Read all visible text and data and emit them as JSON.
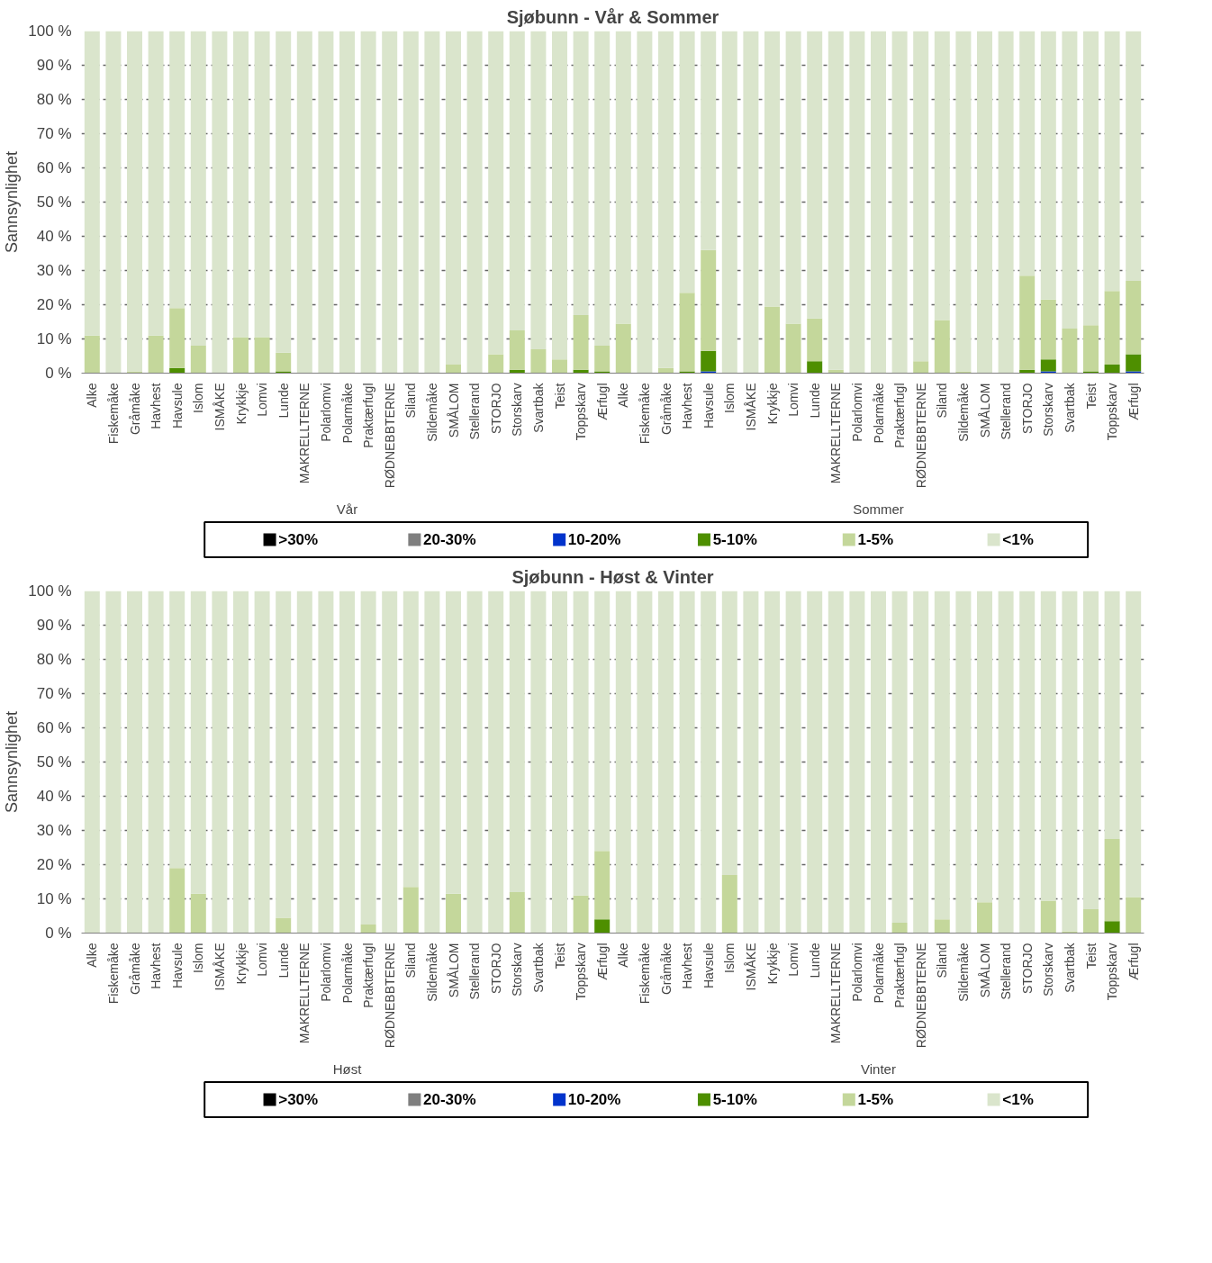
{
  "chart_data": [
    {
      "type": "bar",
      "title": "Sjøbunn - Vår & Sommer",
      "ylabel": "Sannsynlighet",
      "stacked": true,
      "grid": "y",
      "legend": "bottom",
      "categories": [
        "Alke",
        "Fiskemåke",
        "Gråmåke",
        "Havhest",
        "Havsule",
        "Islom",
        "ISMÅKE",
        "Krykkje",
        "Lomvi",
        "Lunde",
        "MAKRELLTERNE",
        "Polarlomvi",
        "Polarmåke",
        "Praktærfugl",
        "RØDNEBBTERNE",
        "Siland",
        "Sildemåke",
        "SMÅLOM",
        "Stellerand",
        "STORJO",
        "Storskarv",
        "Svartbak",
        "Teist",
        "Toppskarv",
        "Ærfugl",
        "Alke",
        "Fiskemåke",
        "Gråmåke",
        "Havhest",
        "Havsule",
        "Islom",
        "ISMÅKE",
        "Krykkje",
        "Lomvi",
        "Lunde",
        "MAKRELLTERNE",
        "Polarlomvi",
        "Polarmåke",
        "Praktærfugl",
        "RØDNEBBTERNE",
        "Siland",
        "Sildemåke",
        "SMÅLOM",
        "Stellerand",
        "STORJO",
        "Storskarv",
        "Svartbak",
        "Teist",
        "Toppskarv",
        "Ærfugl"
      ],
      "annotations": [
        "Vår",
        "Sommer"
      ],
      "ylim": [
        0,
        100
      ],
      "yticks": [
        {
          "value": 0,
          "label": "0 %"
        },
        {
          "value": 10,
          "label": "10 %"
        },
        {
          "value": 20,
          "label": "20 %"
        },
        {
          "value": 30,
          "label": "30 %"
        },
        {
          "value": 40,
          "label": "40 %"
        },
        {
          "value": 50,
          "label": "50 %"
        },
        {
          "value": 60,
          "label": "60 %"
        },
        {
          "value": 70,
          "label": "70 %"
        },
        {
          "value": 80,
          "label": "80 %"
        },
        {
          "value": 90,
          "label": "90 %"
        },
        {
          "value": 100,
          "label": "100 %"
        }
      ],
      "series": [
        {
          "name": ">30%",
          "color": "#000000",
          "values": [
            0,
            0,
            0,
            0,
            0,
            0,
            0,
            0,
            0,
            0,
            0,
            0,
            0,
            0,
            0,
            0,
            0,
            0,
            0,
            0,
            0,
            0,
            0,
            0,
            0,
            0,
            0,
            0,
            0,
            0,
            0,
            0,
            0,
            0,
            0,
            0,
            0,
            0,
            0,
            0,
            0,
            0,
            0,
            0,
            0,
            0,
            0,
            0,
            0,
            0
          ]
        },
        {
          "name": "20-30%",
          "color": "#7f7f7f",
          "values": [
            0,
            0,
            0,
            0,
            0,
            0,
            0,
            0,
            0,
            0,
            0,
            0,
            0,
            0,
            0,
            0,
            0,
            0,
            0,
            0,
            0,
            0,
            0,
            0,
            0,
            0,
            0,
            0,
            0,
            0,
            0,
            0,
            0,
            0,
            0,
            0,
            0,
            0,
            0,
            0,
            0,
            0,
            0,
            0,
            0,
            0,
            0,
            0,
            0,
            0
          ]
        },
        {
          "name": "10-20%",
          "color": "#0033cc",
          "values": [
            0,
            0,
            0,
            0,
            0,
            0,
            0,
            0,
            0,
            0,
            0,
            0,
            0,
            0,
            0,
            0,
            0,
            0,
            0,
            0,
            0,
            0,
            0,
            0,
            0,
            0,
            0,
            0,
            0,
            0.5,
            0,
            0,
            0,
            0,
            0,
            0,
            0,
            0,
            0,
            0,
            0,
            0,
            0,
            0,
            0,
            0.5,
            0,
            0,
            0,
            0.5
          ]
        },
        {
          "name": "5-10%",
          "color": "#4e8f00",
          "values": [
            0,
            0,
            0,
            0,
            1.5,
            0,
            0,
            0,
            0,
            0.5,
            0,
            0,
            0,
            0,
            0,
            0,
            0,
            0,
            0,
            0,
            1,
            0,
            0,
            1,
            0.5,
            0,
            0,
            0,
            0.5,
            6,
            0,
            0,
            0,
            0,
            3.5,
            0,
            0,
            0,
            0,
            0,
            0,
            0,
            0,
            0,
            1,
            3.5,
            0,
            0.5,
            2.5,
            5
          ]
        },
        {
          "name": "1-5%",
          "color": "#c4d79b",
          "values": [
            11,
            0,
            0.5,
            11,
            17.5,
            8,
            0,
            10.5,
            10.5,
            5.5,
            0,
            0,
            0,
            0,
            0,
            0,
            0,
            2.5,
            0,
            5.5,
            11.5,
            7,
            4,
            16,
            7.5,
            14.5,
            0,
            1.5,
            23,
            29.5,
            0,
            0,
            19.5,
            14.5,
            12.5,
            1,
            0,
            0,
            0,
            3.5,
            15.5,
            0.5,
            0,
            0,
            27.5,
            17.5,
            13,
            13.5,
            21.5,
            21.5
          ]
        },
        {
          "name": "<1%",
          "color": "#dae5cc",
          "values": [
            89,
            100,
            99.5,
            89,
            81,
            92,
            100,
            89.5,
            89.5,
            94,
            100,
            100,
            100,
            100,
            100,
            100,
            100,
            97.5,
            100,
            94.5,
            87.5,
            93,
            96,
            83,
            92,
            85.5,
            100,
            98.5,
            76.5,
            64,
            100,
            100,
            80.5,
            85.5,
            84,
            99,
            100,
            100,
            100,
            96.5,
            84.5,
            99.5,
            100,
            100,
            71.5,
            78.5,
            87,
            86,
            76,
            73
          ]
        }
      ]
    },
    {
      "type": "bar",
      "title": "Sjøbunn - Høst & Vinter",
      "ylabel": "Sannsynlighet",
      "stacked": true,
      "grid": "y",
      "legend": "bottom",
      "categories": [
        "Alke",
        "Fiskemåke",
        "Gråmåke",
        "Havhest",
        "Havsule",
        "Islom",
        "ISMÅKE",
        "Krykkje",
        "Lomvi",
        "Lunde",
        "MAKRELLTERNE",
        "Polarlomvi",
        "Polarmåke",
        "Praktærfugl",
        "RØDNEBBTERNE",
        "Siland",
        "Sildemåke",
        "SMÅLOM",
        "Stellerand",
        "STORJO",
        "Storskarv",
        "Svartbak",
        "Teist",
        "Toppskarv",
        "Ærfugl",
        "Alke",
        "Fiskemåke",
        "Gråmåke",
        "Havhest",
        "Havsule",
        "Islom",
        "ISMÅKE",
        "Krykkje",
        "Lomvi",
        "Lunde",
        "MAKRELLTERNE",
        "Polarlomvi",
        "Polarmåke",
        "Praktærfugl",
        "RØDNEBBTERNE",
        "Siland",
        "Sildemåke",
        "SMÅLOM",
        "Stellerand",
        "STORJO",
        "Storskarv",
        "Svartbak",
        "Teist",
        "Toppskarv",
        "Ærfugl"
      ],
      "annotations": [
        "Høst",
        "Vinter"
      ],
      "ylim": [
        0,
        100
      ],
      "yticks": [
        {
          "value": 0,
          "label": "0 %"
        },
        {
          "value": 10,
          "label": "10 %"
        },
        {
          "value": 20,
          "label": "20 %"
        },
        {
          "value": 30,
          "label": "30 %"
        },
        {
          "value": 40,
          "label": "40 %"
        },
        {
          "value": 50,
          "label": "50 %"
        },
        {
          "value": 60,
          "label": "60 %"
        },
        {
          "value": 70,
          "label": "70 %"
        },
        {
          "value": 80,
          "label": "80 %"
        },
        {
          "value": 90,
          "label": "90 %"
        },
        {
          "value": 100,
          "label": "100 %"
        }
      ],
      "series": [
        {
          "name": ">30%",
          "color": "#000000",
          "values": [
            0,
            0,
            0,
            0,
            0,
            0,
            0,
            0,
            0,
            0,
            0,
            0,
            0,
            0,
            0,
            0,
            0,
            0,
            0,
            0,
            0,
            0,
            0,
            0,
            0,
            0,
            0,
            0,
            0,
            0,
            0,
            0,
            0,
            0,
            0,
            0,
            0,
            0,
            0,
            0,
            0,
            0,
            0,
            0,
            0,
            0,
            0,
            0,
            0,
            0
          ]
        },
        {
          "name": "20-30%",
          "color": "#7f7f7f",
          "values": [
            0,
            0,
            0,
            0,
            0,
            0,
            0,
            0,
            0,
            0,
            0,
            0,
            0,
            0,
            0,
            0,
            0,
            0,
            0,
            0,
            0,
            0,
            0,
            0,
            0,
            0,
            0,
            0,
            0,
            0,
            0,
            0,
            0,
            0,
            0,
            0,
            0,
            0,
            0,
            0,
            0,
            0,
            0,
            0,
            0,
            0,
            0,
            0,
            0,
            0
          ]
        },
        {
          "name": "10-20%",
          "color": "#0033cc",
          "values": [
            0,
            0,
            0,
            0,
            0,
            0,
            0,
            0,
            0,
            0,
            0,
            0,
            0,
            0,
            0,
            0,
            0,
            0,
            0,
            0,
            0,
            0,
            0,
            0,
            0,
            0,
            0,
            0,
            0,
            0,
            0,
            0,
            0,
            0,
            0,
            0,
            0,
            0,
            0,
            0,
            0,
            0,
            0,
            0,
            0,
            0,
            0,
            0,
            0,
            0
          ]
        },
        {
          "name": "5-10%",
          "color": "#4e8f00",
          "values": [
            0,
            0,
            0,
            0,
            0,
            0,
            0,
            0,
            0,
            0,
            0,
            0,
            0,
            0,
            0,
            0,
            0,
            0,
            0,
            0,
            0,
            0,
            0,
            0,
            4,
            0,
            0,
            0,
            0,
            0,
            0,
            0,
            0,
            0,
            0,
            0,
            0,
            0,
            0,
            0,
            0,
            0,
            0,
            0,
            0,
            0,
            0,
            0,
            3.5,
            0
          ]
        },
        {
          "name": "1-5%",
          "color": "#c4d79b",
          "values": [
            0,
            0,
            0,
            0,
            19,
            11.5,
            0,
            0,
            0,
            4.5,
            0,
            0,
            0,
            2.5,
            0,
            13.5,
            0,
            11.5,
            0,
            0,
            12,
            0,
            0,
            11,
            20,
            0,
            0,
            0,
            0,
            0,
            17,
            0,
            0,
            0,
            0,
            0,
            0,
            0,
            3,
            0,
            4,
            0,
            9,
            0,
            0,
            9.5,
            0.5,
            7,
            24,
            10.5
          ]
        },
        {
          "name": "<1%",
          "color": "#dae5cc",
          "values": [
            100,
            100,
            100,
            100,
            81,
            88.5,
            100,
            100,
            100,
            95.5,
            100,
            100,
            100,
            97.5,
            100,
            86.5,
            100,
            88.5,
            100,
            100,
            88,
            100,
            100,
            89,
            76,
            100,
            100,
            100,
            100,
            100,
            83,
            100,
            100,
            100,
            100,
            100,
            100,
            100,
            97,
            100,
            96,
            100,
            91,
            100,
            100,
            90.5,
            99.5,
            93,
            72.5,
            89.5
          ]
        }
      ]
    }
  ]
}
